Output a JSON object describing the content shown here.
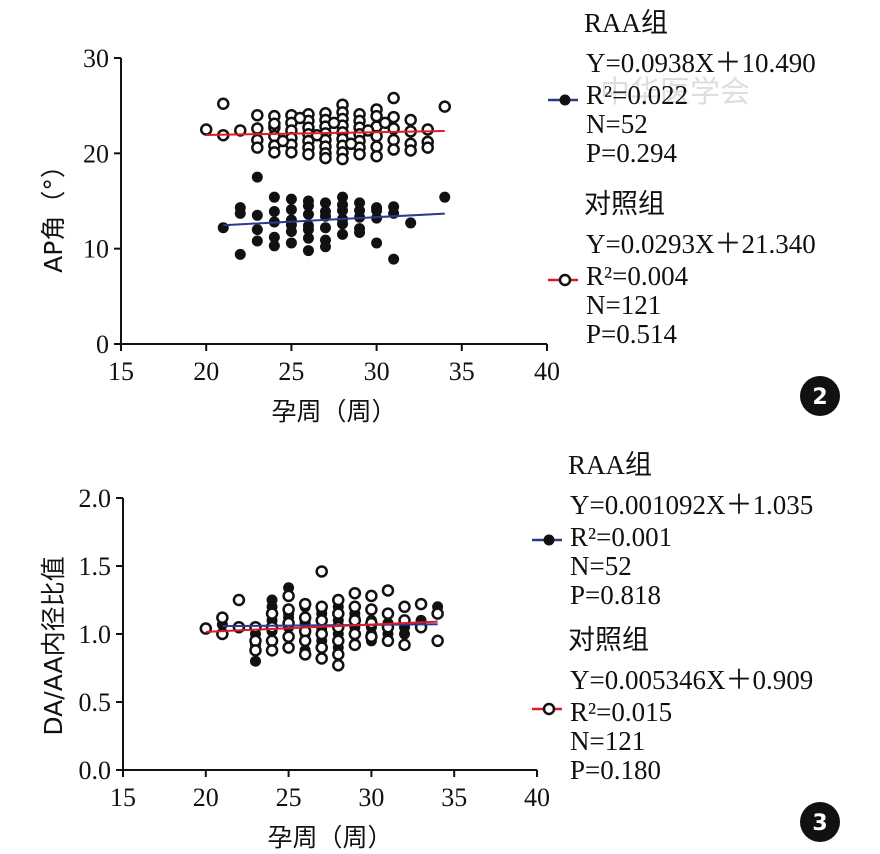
{
  "watermark": "中华医学会",
  "chart_data": [
    {
      "type": "scatter",
      "badge": "2",
      "xlabel": "孕周（周）",
      "ylabel": "AP角（°）",
      "xlim": [
        15,
        40
      ],
      "ylim": [
        0,
        30
      ],
      "xticks": [
        15,
        20,
        25,
        30,
        35,
        40
      ],
      "yticks": [
        0,
        10,
        20,
        30
      ],
      "groups": [
        {
          "key": "raa",
          "name": "RAA组",
          "equation": "Y=0.0938X＋10.490",
          "r2": "R²=0.022",
          "n": "N=52",
          "p": "P=0.294",
          "marker": "filled",
          "line_color": "#2b3990",
          "fit": {
            "slope": 0.0938,
            "intercept": 10.49,
            "xrange": [
              21,
              34
            ]
          },
          "points": [
            [
              21,
              12.2
            ],
            [
              22,
              14.3
            ],
            [
              22,
              13.7
            ],
            [
              22,
              9.4
            ],
            [
              23,
              17.5
            ],
            [
              23,
              12.0
            ],
            [
              23,
              10.8
            ],
            [
              23,
              13.5
            ],
            [
              24,
              15.4
            ],
            [
              24,
              12.8
            ],
            [
              24,
              11.2
            ],
            [
              24,
              10.3
            ],
            [
              24,
              13.9
            ],
            [
              25,
              15.2
            ],
            [
              25,
              14.1
            ],
            [
              25,
              13.0
            ],
            [
              25,
              11.8
            ],
            [
              25,
              10.6
            ],
            [
              26,
              15.0
            ],
            [
              26,
              13.6
            ],
            [
              26,
              12.4
            ],
            [
              26,
              11.1
            ],
            [
              26,
              9.8
            ],
            [
              26,
              14.5
            ],
            [
              27,
              14.8
            ],
            [
              27,
              13.4
            ],
            [
              27,
              12.2
            ],
            [
              27,
              10.9
            ],
            [
              27,
              10.2
            ],
            [
              28,
              15.4
            ],
            [
              28,
              14.0
            ],
            [
              28,
              13.1
            ],
            [
              28,
              12.6
            ],
            [
              28,
              11.5
            ],
            [
              28,
              14.6
            ],
            [
              29,
              14.8
            ],
            [
              29,
              13.3
            ],
            [
              29,
              12.1
            ],
            [
              29,
              14.0
            ],
            [
              30,
              14.3
            ],
            [
              30,
              13.2
            ],
            [
              30,
              10.6
            ],
            [
              31,
              14.4
            ],
            [
              31,
              13.7
            ],
            [
              31,
              8.9
            ],
            [
              32,
              12.7
            ],
            [
              34,
              15.4
            ],
            [
              27,
              13.9
            ],
            [
              25,
              12.5
            ],
            [
              29,
              11.7
            ],
            [
              30,
              14.0
            ],
            [
              26,
              12.0
            ]
          ]
        },
        {
          "key": "ctrl",
          "name": "对照组",
          "equation": "Y=0.0293X＋21.340",
          "r2": "R²=0.004",
          "n": "N=121",
          "p": "P=0.514",
          "marker": "open",
          "line_color": "#e01b24",
          "fit": {
            "slope": 0.0293,
            "intercept": 21.34,
            "xrange": [
              20,
              34
            ]
          },
          "points": [
            [
              20,
              22.5
            ],
            [
              21,
              25.2
            ],
            [
              21,
              21.9
            ],
            [
              22,
              22.4
            ],
            [
              23,
              24.0
            ],
            [
              23,
              22.6
            ],
            [
              23,
              21.4
            ],
            [
              23,
              20.6
            ],
            [
              24,
              23.9
            ],
            [
              24,
              22.7
            ],
            [
              24,
              21.8
            ],
            [
              24,
              20.8
            ],
            [
              24,
              20.1
            ],
            [
              24,
              23.1
            ],
            [
              25,
              24.0
            ],
            [
              25,
              23.2
            ],
            [
              25,
              22.4
            ],
            [
              25,
              21.6
            ],
            [
              25,
              20.9
            ],
            [
              25,
              20.1
            ],
            [
              26,
              24.1
            ],
            [
              26,
              23.4
            ],
            [
              26,
              22.7
            ],
            [
              26,
              22.0
            ],
            [
              26,
              21.3
            ],
            [
              26,
              20.6
            ],
            [
              26,
              19.9
            ],
            [
              27,
              24.2
            ],
            [
              27,
              23.5
            ],
            [
              27,
              22.8
            ],
            [
              27,
              22.1
            ],
            [
              27,
              21.4
            ],
            [
              27,
              20.7
            ],
            [
              27,
              20.0
            ],
            [
              27,
              19.5
            ],
            [
              28,
              25.1
            ],
            [
              28,
              24.3
            ],
            [
              28,
              23.6
            ],
            [
              28,
              22.9
            ],
            [
              28,
              22.2
            ],
            [
              28,
              21.5
            ],
            [
              28,
              20.8
            ],
            [
              28,
              20.1
            ],
            [
              28,
              19.4
            ],
            [
              29,
              24.1
            ],
            [
              29,
              23.4
            ],
            [
              29,
              22.7
            ],
            [
              29,
              22.0
            ],
            [
              29,
              21.3
            ],
            [
              29,
              20.6
            ],
            [
              29,
              19.9
            ],
            [
              30,
              24.6
            ],
            [
              30,
              23.9
            ],
            [
              30,
              22.8
            ],
            [
              30,
              21.8
            ],
            [
              30,
              20.7
            ],
            [
              30,
              19.7
            ],
            [
              31,
              25.8
            ],
            [
              31,
              23.8
            ],
            [
              31,
              22.6
            ],
            [
              31,
              21.4
            ],
            [
              31,
              20.4
            ],
            [
              32,
              23.5
            ],
            [
              32,
              21.0
            ],
            [
              32,
              20.3
            ],
            [
              32,
              22.3
            ],
            [
              33,
              22.5
            ],
            [
              33,
              21.2
            ],
            [
              33,
              20.6
            ],
            [
              34,
              24.9
            ],
            [
              25.5,
              23.7
            ],
            [
              26.5,
              21.9
            ],
            [
              27.5,
              23.2
            ],
            [
              28.5,
              21.0
            ],
            [
              29.5,
              22.4
            ],
            [
              24.5,
              21.3
            ],
            [
              30.5,
              23.2
            ]
          ]
        }
      ]
    },
    {
      "type": "scatter",
      "badge": "3",
      "xlabel": "孕周（周）",
      "ylabel": "DA/AA内径比值",
      "xlim": [
        15,
        40
      ],
      "ylim": [
        0.0,
        2.0
      ],
      "xticks": [
        15,
        20,
        25,
        30,
        35,
        40
      ],
      "yticks": [
        "0.0",
        "0.5",
        "1.0",
        "1.5",
        "2.0"
      ],
      "groups": [
        {
          "key": "raa",
          "name": "RAA组",
          "equation": "Y=0.001092X＋1.035",
          "r2": "R²=0.001",
          "n": "N=52",
          "p": "P=0.818",
          "marker": "filled",
          "line_color": "#2b3990",
          "fit": {
            "slope": 0.001092,
            "intercept": 1.035,
            "xrange": [
              21,
              34
            ]
          },
          "points": [
            [
              21,
              1.07
            ],
            [
              22,
              1.05
            ],
            [
              23,
              1.0
            ],
            [
              23,
              0.8
            ],
            [
              23,
              1.05
            ],
            [
              24,
              1.25
            ],
            [
              24,
              1.1
            ],
            [
              24,
              0.95
            ],
            [
              24,
              1.2
            ],
            [
              25,
              1.34
            ],
            [
              25,
              1.15
            ],
            [
              25,
              1.05
            ],
            [
              25,
              0.9
            ],
            [
              26,
              1.2
            ],
            [
              26,
              1.1
            ],
            [
              26,
              1.0
            ],
            [
              26,
              0.95
            ],
            [
              27,
              1.15
            ],
            [
              27,
              1.05
            ],
            [
              27,
              0.95
            ],
            [
              27,
              1.1
            ],
            [
              28,
              1.2
            ],
            [
              28,
              1.1
            ],
            [
              28,
              1.0
            ],
            [
              28,
              0.95
            ],
            [
              28,
              1.15
            ],
            [
              29,
              1.15
            ],
            [
              29,
              1.05
            ],
            [
              29,
              1.0
            ],
            [
              30,
              1.1
            ],
            [
              30,
              1.05
            ],
            [
              30,
              0.95
            ],
            [
              31,
              1.15
            ],
            [
              31,
              1.0
            ],
            [
              32,
              1.05
            ],
            [
              33,
              1.1
            ],
            [
              34,
              1.2
            ],
            [
              26,
              1.08
            ],
            [
              27,
              1.02
            ],
            [
              28,
              1.05
            ],
            [
              29,
              0.93
            ],
            [
              25,
              0.98
            ],
            [
              24,
              1.02
            ],
            [
              30,
              1.0
            ],
            [
              31,
              1.08
            ],
            [
              27,
              1.18
            ],
            [
              23,
              0.92
            ],
            [
              26,
              0.88
            ],
            [
              28,
              0.9
            ],
            [
              29,
              1.12
            ],
            [
              25,
              1.12
            ],
            [
              32,
              1.0
            ]
          ]
        },
        {
          "key": "ctrl",
          "name": "对照组",
          "equation": "Y=0.005346X＋0.909",
          "r2": "R²=0.015",
          "n": "N=121",
          "p": "P=0.180",
          "marker": "open",
          "line_color": "#e01b24",
          "fit": {
            "slope": 0.005346,
            "intercept": 0.909,
            "xrange": [
              20,
              34
            ]
          },
          "points": [
            [
              20,
              1.04
            ],
            [
              21,
              1.12
            ],
            [
              21,
              1.0
            ],
            [
              22,
              1.25
            ],
            [
              22,
              1.05
            ],
            [
              23,
              1.05
            ],
            [
              23,
              0.95
            ],
            [
              23,
              0.88
            ],
            [
              24,
              1.15
            ],
            [
              24,
              1.05
            ],
            [
              24,
              0.95
            ],
            [
              24,
              0.88
            ],
            [
              25,
              1.28
            ],
            [
              25,
              1.18
            ],
            [
              25,
              1.08
            ],
            [
              25,
              0.98
            ],
            [
              25,
              0.9
            ],
            [
              26,
              1.22
            ],
            [
              26,
              1.12
            ],
            [
              26,
              1.02
            ],
            [
              26,
              0.95
            ],
            [
              26,
              0.85
            ],
            [
              27,
              1.46
            ],
            [
              27,
              1.2
            ],
            [
              27,
              1.1
            ],
            [
              27,
              1.0
            ],
            [
              27,
              0.9
            ],
            [
              27,
              0.82
            ],
            [
              28,
              1.25
            ],
            [
              28,
              1.15
            ],
            [
              28,
              1.05
            ],
            [
              28,
              0.95
            ],
            [
              28,
              0.85
            ],
            [
              28,
              0.77
            ],
            [
              29,
              1.3
            ],
            [
              29,
              1.2
            ],
            [
              29,
              1.1
            ],
            [
              29,
              1.0
            ],
            [
              29,
              0.92
            ],
            [
              30,
              1.28
            ],
            [
              30,
              1.18
            ],
            [
              30,
              1.08
            ],
            [
              30,
              0.98
            ],
            [
              31,
              1.32
            ],
            [
              31,
              1.15
            ],
            [
              31,
              1.05
            ],
            [
              31,
              0.95
            ],
            [
              32,
              1.2
            ],
            [
              32,
              1.1
            ],
            [
              32,
              0.92
            ],
            [
              33,
              1.22
            ],
            [
              33,
              1.05
            ],
            [
              34,
              1.15
            ],
            [
              34,
              0.95
            ]
          ]
        }
      ]
    }
  ]
}
